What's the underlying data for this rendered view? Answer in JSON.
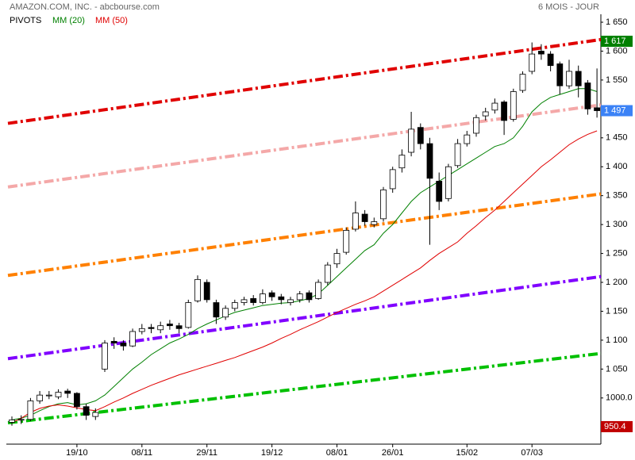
{
  "chart_data": {
    "type": "candlestick",
    "title": "AMAZON.COM, INC. - abcbourse.com",
    "subtitle": "6 MOIS - JOUR",
    "categories": [
      null,
      null,
      null,
      null,
      null,
      null,
      null,
      "19/10",
      null,
      null,
      null,
      null,
      null,
      null,
      "08/11",
      null,
      null,
      null,
      null,
      null,
      null,
      "29/11",
      null,
      null,
      null,
      null,
      null,
      null,
      "19/12",
      null,
      null,
      null,
      null,
      null,
      null,
      "08/01",
      null,
      null,
      null,
      null,
      null,
      "26/01",
      null,
      null,
      null,
      null,
      null,
      null,
      null,
      "15/02",
      null,
      null,
      null,
      null,
      null,
      null,
      "07/03",
      null,
      null,
      null,
      null,
      null,
      null,
      null
    ],
    "ohlc": [
      [
        958,
        968,
        952,
        962
      ],
      [
        962,
        970,
        955,
        963
      ],
      [
        963,
        1000,
        960,
        995
      ],
      [
        995,
        1012,
        990,
        1005
      ],
      [
        1005,
        1012,
        998,
        1005
      ],
      [
        1002,
        1015,
        998,
        1010
      ],
      [
        1012,
        1016,
        1000,
        1008
      ],
      [
        1008,
        1010,
        980,
        985
      ],
      [
        985,
        990,
        962,
        970
      ],
      [
        968,
        982,
        962,
        975
      ],
      [
        1050,
        1100,
        1045,
        1095
      ],
      [
        1098,
        1105,
        1085,
        1095
      ],
      [
        1095,
        1100,
        1082,
        1090
      ],
      [
        1090,
        1120,
        1088,
        1115
      ],
      [
        1115,
        1128,
        1110,
        1120
      ],
      [
        1122,
        1128,
        1112,
        1120
      ],
      [
        1118,
        1132,
        1112,
        1125
      ],
      [
        1128,
        1135,
        1118,
        1125
      ],
      [
        1125,
        1130,
        1112,
        1120
      ],
      [
        1122,
        1170,
        1120,
        1165
      ],
      [
        1168,
        1212,
        1165,
        1205
      ],
      [
        1200,
        1205,
        1165,
        1170
      ],
      [
        1165,
        1170,
        1128,
        1140
      ],
      [
        1140,
        1160,
        1135,
        1155
      ],
      [
        1155,
        1170,
        1150,
        1165
      ],
      [
        1165,
        1175,
        1160,
        1170
      ],
      [
        1172,
        1178,
        1160,
        1165
      ],
      [
        1165,
        1188,
        1162,
        1180
      ],
      [
        1182,
        1186,
        1168,
        1175
      ],
      [
        1175,
        1180,
        1162,
        1170
      ],
      [
        1165,
        1175,
        1160,
        1170
      ],
      [
        1170,
        1185,
        1165,
        1180
      ],
      [
        1182,
        1186,
        1165,
        1170
      ],
      [
        1172,
        1205,
        1170,
        1200
      ],
      [
        1200,
        1235,
        1195,
        1230
      ],
      [
        1232,
        1258,
        1225,
        1250
      ],
      [
        1252,
        1295,
        1248,
        1290
      ],
      [
        1292,
        1340,
        1288,
        1320
      ],
      [
        1318,
        1325,
        1298,
        1305
      ],
      [
        1300,
        1312,
        1295,
        1305
      ],
      [
        1310,
        1365,
        1305,
        1360
      ],
      [
        1362,
        1400,
        1355,
        1395
      ],
      [
        1398,
        1430,
        1390,
        1420
      ],
      [
        1425,
        1495,
        1418,
        1465
      ],
      [
        1468,
        1475,
        1430,
        1440
      ],
      [
        1440,
        1450,
        1265,
        1380
      ],
      [
        1375,
        1390,
        1325,
        1340
      ],
      [
        1345,
        1405,
        1340,
        1400
      ],
      [
        1402,
        1448,
        1398,
        1440
      ],
      [
        1440,
        1462,
        1435,
        1455
      ],
      [
        1458,
        1490,
        1452,
        1485
      ],
      [
        1488,
        1502,
        1480,
        1495
      ],
      [
        1498,
        1518,
        1492,
        1510
      ],
      [
        1512,
        1515,
        1455,
        1480
      ],
      [
        1482,
        1535,
        1478,
        1530
      ],
      [
        1532,
        1565,
        1528,
        1560
      ],
      [
        1565,
        1615,
        1560,
        1595
      ],
      [
        1600,
        1612,
        1585,
        1595
      ],
      [
        1595,
        1600,
        1565,
        1575
      ],
      [
        1578,
        1582,
        1525,
        1540
      ],
      [
        1540,
        1585,
        1535,
        1565
      ],
      [
        1565,
        1575,
        1520,
        1540
      ],
      [
        1545,
        1550,
        1490,
        1500
      ],
      [
        1502,
        1570,
        1485,
        1497
      ]
    ],
    "series": [
      {
        "name": "MM (20)",
        "color": "#008000",
        "values": [
          962,
          965,
          970,
          978,
          985,
          990,
          992,
          988,
          990,
          995,
          1005,
          1020,
          1035,
          1050,
          1062,
          1075,
          1085,
          1095,
          1102,
          1110,
          1120,
          1128,
          1135,
          1142,
          1148,
          1152,
          1156,
          1160,
          1162,
          1164,
          1165,
          1168,
          1172,
          1180,
          1195,
          1210,
          1225,
          1240,
          1255,
          1265,
          1285,
          1300,
          1320,
          1340,
          1355,
          1365,
          1375,
          1385,
          1395,
          1405,
          1415,
          1425,
          1435,
          1440,
          1450,
          1470,
          1495,
          1510,
          1520,
          1525,
          1530,
          1535,
          1535,
          1530
        ]
      },
      {
        "name": "MM (50)",
        "color": "#e00000",
        "values": [
          957,
          965,
          975,
          982,
          986,
          988,
          986,
          983,
          980,
          978,
          985,
          993,
          1000,
          1008,
          1015,
          1022,
          1028,
          1034,
          1040,
          1045,
          1050,
          1055,
          1060,
          1065,
          1070,
          1076,
          1082,
          1088,
          1095,
          1103,
          1110,
          1118,
          1125,
          1132,
          1140,
          1148,
          1155,
          1162,
          1168,
          1175,
          1185,
          1195,
          1205,
          1215,
          1225,
          1238,
          1250,
          1260,
          1270,
          1285,
          1298,
          1312,
          1325,
          1340,
          1355,
          1370,
          1385,
          1400,
          1412,
          1425,
          1438,
          1448,
          1456,
          1462
        ]
      }
    ],
    "pivots": {
      "name": "PIVOTS",
      "lines": [
        {
          "color": "#e00000",
          "values": [
            1475,
            1620
          ]
        },
        {
          "color": "#f4a8a8",
          "values": [
            1365,
            1507
          ]
        },
        {
          "color": "#ff8000",
          "values": [
            1212,
            1353
          ]
        },
        {
          "color": "#8000ff",
          "values": [
            1068,
            1210
          ]
        },
        {
          "color": "#00c000",
          "values": [
            957,
            1077
          ]
        }
      ]
    },
    "price_labels": [
      {
        "value": 1617,
        "label": "1 617",
        "color": "#008000"
      },
      {
        "value": 1497,
        "label": "1 497",
        "color": "#3b82f6"
      },
      {
        "value": 950.4,
        "label": "950.4",
        "color": "#c00000"
      }
    ],
    "ylim": [
      927,
      1661
    ],
    "yticks": [
      {
        "value": 1000,
        "label": "1000.0"
      },
      {
        "value": 1050,
        "label": "1 050"
      },
      {
        "value": 1100,
        "label": "1 100"
      },
      {
        "value": 1150,
        "label": "1 150"
      },
      {
        "value": 1200,
        "label": "1 200"
      },
      {
        "value": 1250,
        "label": "1 250"
      },
      {
        "value": 1300,
        "label": "1 300"
      },
      {
        "value": 1350,
        "label": "1 350"
      },
      {
        "value": 1400,
        "label": "1 400"
      },
      {
        "value": 1450,
        "label": "1 450"
      },
      {
        "value": 1500,
        "label": "1 500"
      },
      {
        "value": 1550,
        "label": "1 550"
      },
      {
        "value": 1600,
        "label": "1 600"
      },
      {
        "value": 1650,
        "label": "1 650"
      }
    ]
  }
}
